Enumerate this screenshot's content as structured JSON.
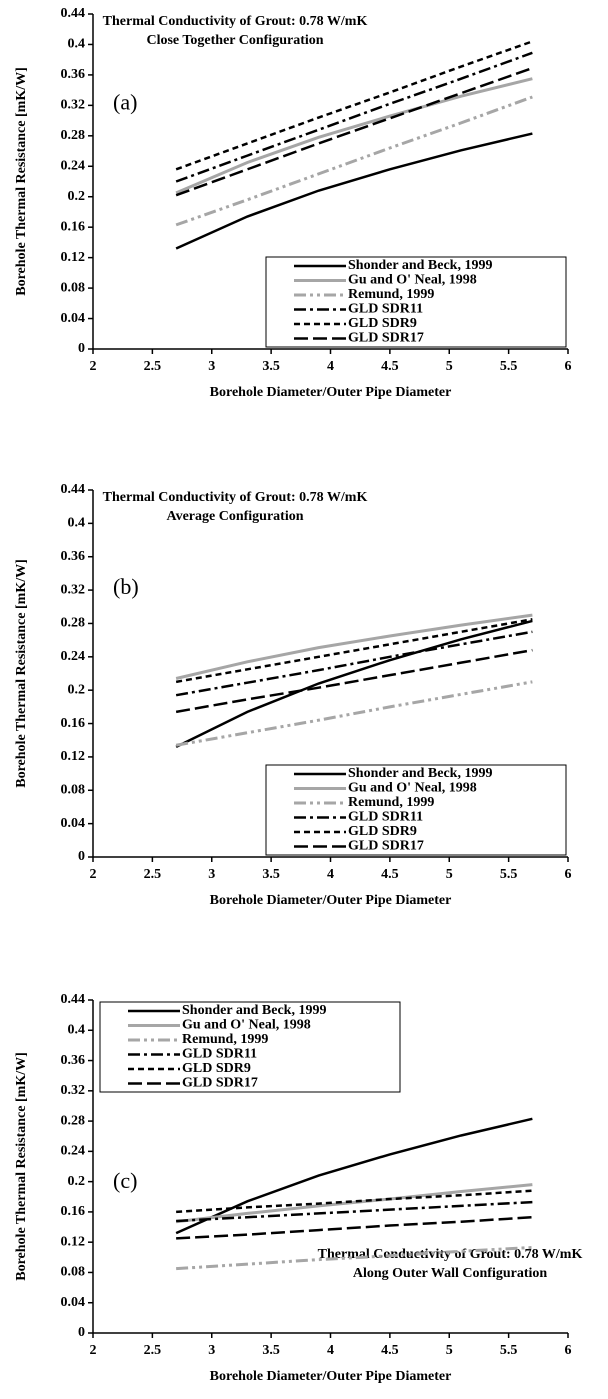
{
  "chart_data": [
    {
      "type": "line",
      "title": "Thermal Conductivity of Grout: 0.78 W/mK",
      "subtitle": "Close Together Configuration",
      "panel_label": "(a)",
      "xlabel": "Borehole Diameter/Outer Pipe Diameter",
      "ylabel": "Borehole Thermal Resistance [mK/W]",
      "x": [
        2.7,
        3.3,
        3.9,
        4.5,
        5.1,
        5.7
      ],
      "xlim": [
        2,
        6
      ],
      "xticks": [
        2,
        2.5,
        3,
        3.5,
        4,
        4.5,
        5,
        5.5,
        6
      ],
      "ylim": [
        0,
        0.44
      ],
      "yticks": [
        0,
        0.04,
        0.08,
        0.12,
        0.16,
        0.2,
        0.24,
        0.28,
        0.32,
        0.36,
        0.4,
        0.44
      ],
      "legend": "lower right",
      "series": [
        {
          "name": "Shonder and Beck, 1999",
          "color": "#000000",
          "dash": "solid",
          "values": [
            0.132,
            0.174,
            0.208,
            0.236,
            0.261,
            0.283
          ]
        },
        {
          "name": "Gu and O' Neal, 1998",
          "color": "#a6a6a6",
          "dash": "solid",
          "values": [
            0.205,
            0.245,
            0.278,
            0.306,
            0.332,
            0.355
          ]
        },
        {
          "name": "Remund, 1999",
          "color": "#a6a6a6",
          "dash": "dashdotdot",
          "values": [
            0.163,
            0.196,
            0.23,
            0.264,
            0.297,
            0.331
          ]
        },
        {
          "name": "GLD SDR11",
          "color": "#000000",
          "dash": "dashdot",
          "values": [
            0.22,
            0.254,
            0.288,
            0.322,
            0.355,
            0.389
          ]
        },
        {
          "name": "GLD SDR9",
          "color": "#000000",
          "dash": "dashed",
          "values": [
            0.236,
            0.27,
            0.304,
            0.337,
            0.371,
            0.404
          ]
        },
        {
          "name": "GLD SDR17",
          "color": "#000000",
          "dash": "longdash",
          "values": [
            0.202,
            0.236,
            0.27,
            0.303,
            0.336,
            0.369
          ]
        }
      ]
    },
    {
      "type": "line",
      "title": "Thermal Conductivity of Grout: 0.78 W/mK",
      "subtitle": "Average Configuration",
      "panel_label": "(b)",
      "xlabel": "Borehole Diameter/Outer Pipe Diameter",
      "ylabel": "Borehole Thermal Resistance [mK/W]",
      "x": [
        2.7,
        3.3,
        3.9,
        4.5,
        5.1,
        5.7
      ],
      "xlim": [
        2,
        6
      ],
      "xticks": [
        2,
        2.5,
        3,
        3.5,
        4,
        4.5,
        5,
        5.5,
        6
      ],
      "ylim": [
        0,
        0.44
      ],
      "yticks": [
        0,
        0.04,
        0.08,
        0.12,
        0.16,
        0.2,
        0.24,
        0.28,
        0.32,
        0.36,
        0.4,
        0.44
      ],
      "legend": "lower right",
      "series": [
        {
          "name": "Shonder and Beck, 1999",
          "color": "#000000",
          "dash": "solid",
          "values": [
            0.132,
            0.174,
            0.208,
            0.236,
            0.261,
            0.283
          ]
        },
        {
          "name": "Gu and O' Neal, 1998",
          "color": "#a6a6a6",
          "dash": "solid",
          "values": [
            0.214,
            0.234,
            0.251,
            0.265,
            0.278,
            0.29
          ]
        },
        {
          "name": "Remund, 1999",
          "color": "#a6a6a6",
          "dash": "dashdotdot",
          "values": [
            0.134,
            0.149,
            0.164,
            0.18,
            0.195,
            0.21
          ]
        },
        {
          "name": "GLD SDR11",
          "color": "#000000",
          "dash": "dashdot",
          "values": [
            0.194,
            0.209,
            0.224,
            0.24,
            0.255,
            0.27
          ]
        },
        {
          "name": "GLD SDR9",
          "color": "#000000",
          "dash": "dashed",
          "values": [
            0.21,
            0.225,
            0.24,
            0.255,
            0.27,
            0.285
          ]
        },
        {
          "name": "GLD SDR17",
          "color": "#000000",
          "dash": "longdash",
          "values": [
            0.174,
            0.189,
            0.203,
            0.218,
            0.233,
            0.248
          ]
        }
      ]
    },
    {
      "type": "line",
      "title": "Thermal Conductivity of Grout: 0.78 W/mK",
      "subtitle": "Along Outer Wall Configuration",
      "panel_label": "(c)",
      "xlabel": "Borehole Diameter/Outer Pipe Diameter",
      "ylabel": "Borehole Thermal Resistance [mK/W]",
      "x": [
        2.7,
        3.3,
        3.9,
        4.5,
        5.1,
        5.7
      ],
      "xlim": [
        2,
        6
      ],
      "xticks": [
        2,
        2.5,
        3,
        3.5,
        4,
        4.5,
        5,
        5.5,
        6
      ],
      "ylim": [
        0,
        0.44
      ],
      "yticks": [
        0,
        0.04,
        0.08,
        0.12,
        0.16,
        0.2,
        0.24,
        0.28,
        0.32,
        0.36,
        0.4,
        0.44
      ],
      "legend": "upper left",
      "series": [
        {
          "name": "Shonder and Beck, 1999",
          "color": "#000000",
          "dash": "solid",
          "values": [
            0.132,
            0.174,
            0.208,
            0.236,
            0.261,
            0.283
          ]
        },
        {
          "name": "Gu and O' Neal, 1998",
          "color": "#a6a6a6",
          "dash": "solid",
          "values": [
            0.147,
            0.158,
            0.168,
            0.177,
            0.187,
            0.196
          ]
        },
        {
          "name": "Remund, 1999",
          "color": "#a6a6a6",
          "dash": "dashdotdot",
          "values": [
            0.085,
            0.091,
            0.097,
            0.102,
            0.108,
            0.113
          ]
        },
        {
          "name": "GLD SDR11",
          "color": "#000000",
          "dash": "dashdot",
          "values": [
            0.148,
            0.153,
            0.158,
            0.163,
            0.168,
            0.173
          ]
        },
        {
          "name": "GLD SDR9",
          "color": "#000000",
          "dash": "dashed",
          "values": [
            0.16,
            0.166,
            0.171,
            0.177,
            0.182,
            0.188
          ]
        },
        {
          "name": "GLD SDR17",
          "color": "#000000",
          "dash": "longdash",
          "values": [
            0.125,
            0.13,
            0.136,
            0.142,
            0.147,
            0.153
          ]
        }
      ]
    }
  ]
}
